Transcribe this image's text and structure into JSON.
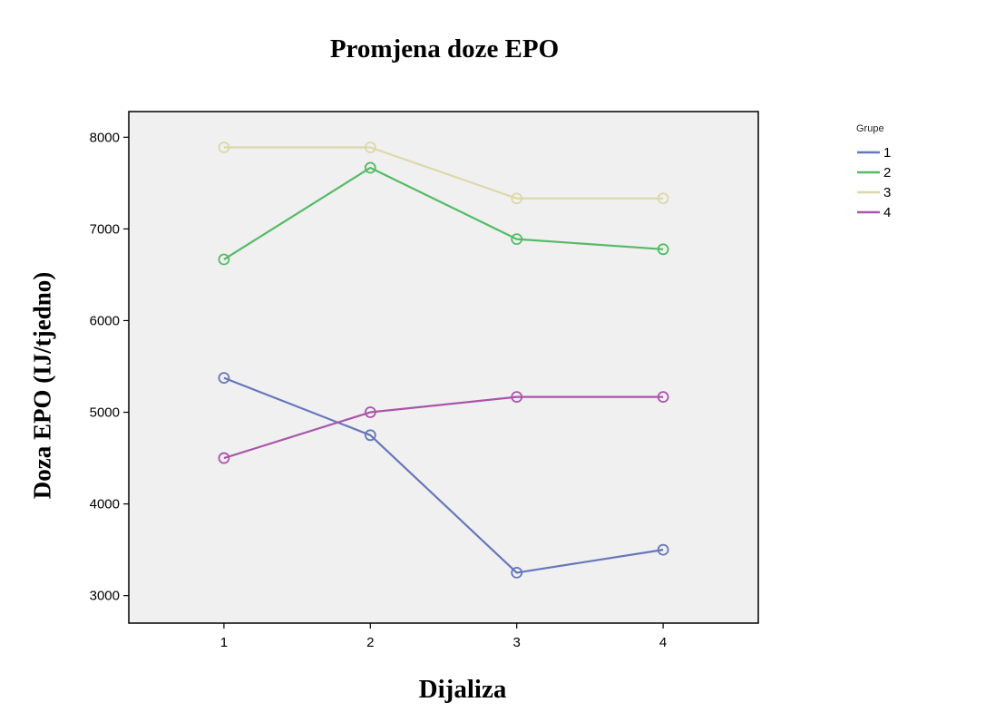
{
  "chart_data": {
    "type": "line",
    "title": "Promjena doze EPO",
    "xlabel": "Dijaliza",
    "ylabel": "Doza EPO (IJ/tjedno)",
    "x": [
      1,
      2,
      3,
      4
    ],
    "x_tick_labels": [
      "1",
      "2",
      "3",
      "4"
    ],
    "y_ticks": [
      3000,
      4000,
      5000,
      6000,
      7000,
      8000
    ],
    "y_tick_labels": [
      "3000",
      "4000",
      "5000",
      "6000",
      "7000",
      "8000"
    ],
    "xlim": [
      0.35,
      4.65
    ],
    "ylim": [
      2700,
      8280
    ],
    "grid": false,
    "legend": {
      "title": "Grupe",
      "position": "top-right"
    },
    "series": [
      {
        "name": "1",
        "color": "#6677bb",
        "values": [
          5375,
          4750,
          3250,
          3500
        ]
      },
      {
        "name": "2",
        "color": "#55bb66",
        "values": [
          6667,
          7667,
          6889,
          6778
        ]
      },
      {
        "name": "3",
        "color": "#ddd8aa",
        "values": [
          7889,
          7889,
          7333,
          7333
        ]
      },
      {
        "name": "4",
        "color": "#aa55aa",
        "values": [
          4500,
          5000,
          5167,
          5167
        ]
      }
    ],
    "marker": "open-circle",
    "plot_background": "#f0f0f0"
  }
}
